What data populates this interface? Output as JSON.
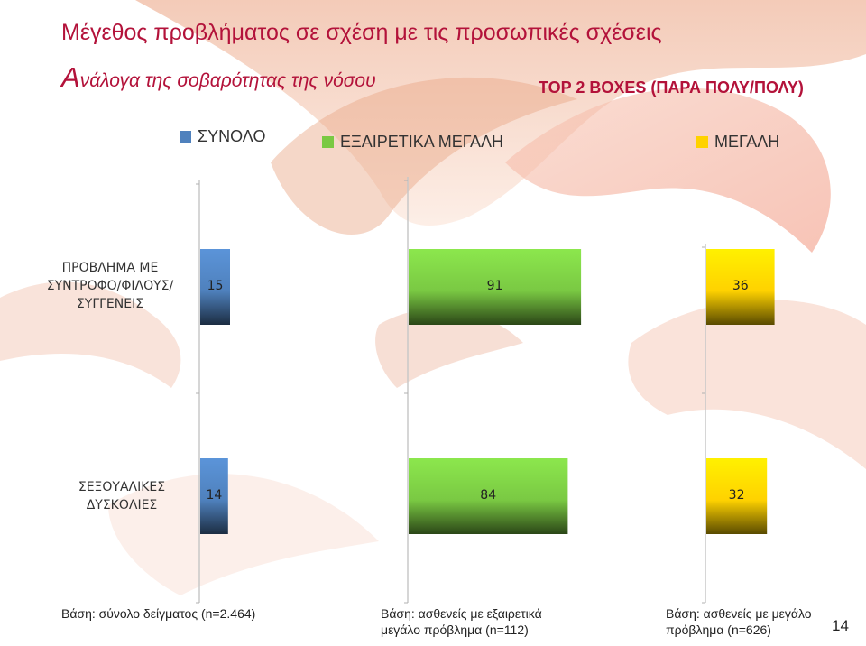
{
  "slide": {
    "title": "Μέγεθος προβλήματος σε σχέση με τις προσωπικές σχέσεις",
    "subtitle_cap": "Α",
    "subtitle_rest": "νάλογα της σοβαρότητας της νόσου",
    "top_boxes": "TOP 2 BOXES (ΠΑΡΑ ΠΟΛΥ/ΠΟΛΥ)",
    "page_number": "14"
  },
  "colors": {
    "title": "#b3123a",
    "series_1": "#4f81bd",
    "series_2": "#7ac943",
    "series_3": "#ffd200"
  },
  "chart_data": {
    "type": "bar",
    "orientation": "horizontal",
    "categories": [
      "ΠΡΟΒΛΗΜΑ ΜΕ ΣΥΝΤΡΟΦΟ/ΦΙΛΟΥΣ/ ΣΥΓΓΕΝΕΙΣ",
      "ΣΕΞΟΥΑΛΙΚΕΣ ΔΥΣΚΟΛΙΕΣ"
    ],
    "category_lines": [
      [
        "ΠΡΟΒΛΗΜΑ ΜΕ",
        "ΣΥΝΤΡΟΦΟ/ΦΙΛΟΥΣ/",
        "ΣΥΓΓΕΝΕΙΣ"
      ],
      [
        "ΣΕΞΟΥΑΛΙΚΕΣ",
        "ΔΥΣΚΟΛΙΕΣ"
      ]
    ],
    "series": [
      {
        "name": "ΣΥΝΟΛΟ",
        "values": [
          15,
          14
        ],
        "color": "#4f81bd",
        "base_note": "Βάση: σύνολο δείγματος (n=2.464)"
      },
      {
        "name": "ΕΞΑΙΡΕΤΙΚΑ ΜΕΓΑΛΗ",
        "values": [
          91,
          84
        ],
        "color": "#7ac943",
        "base_note": "Βάση: ασθενείς με εξαιρετικά μεγάλο πρόβλημα (n=112)"
      },
      {
        "name": "ΜΕΓΑΛΗ",
        "values": [
          36,
          32
        ],
        "color": "#ffd200",
        "base_note": "Βάση: ασθενείς με μεγάλο πρόβλημα (n=626)"
      }
    ],
    "base_note_lines": [
      [
        "Βάση: σύνολο δείγματος (n=2.464)"
      ],
      [
        "Βάση: ασθενείς με εξαιρετικά",
        "μεγάλο πρόβλημα (n=112)"
      ],
      [
        "Βάση: ασθενείς με μεγάλο",
        "πρόβλημα (n=626)"
      ]
    ],
    "legend_position": "top",
    "grid": false
  }
}
